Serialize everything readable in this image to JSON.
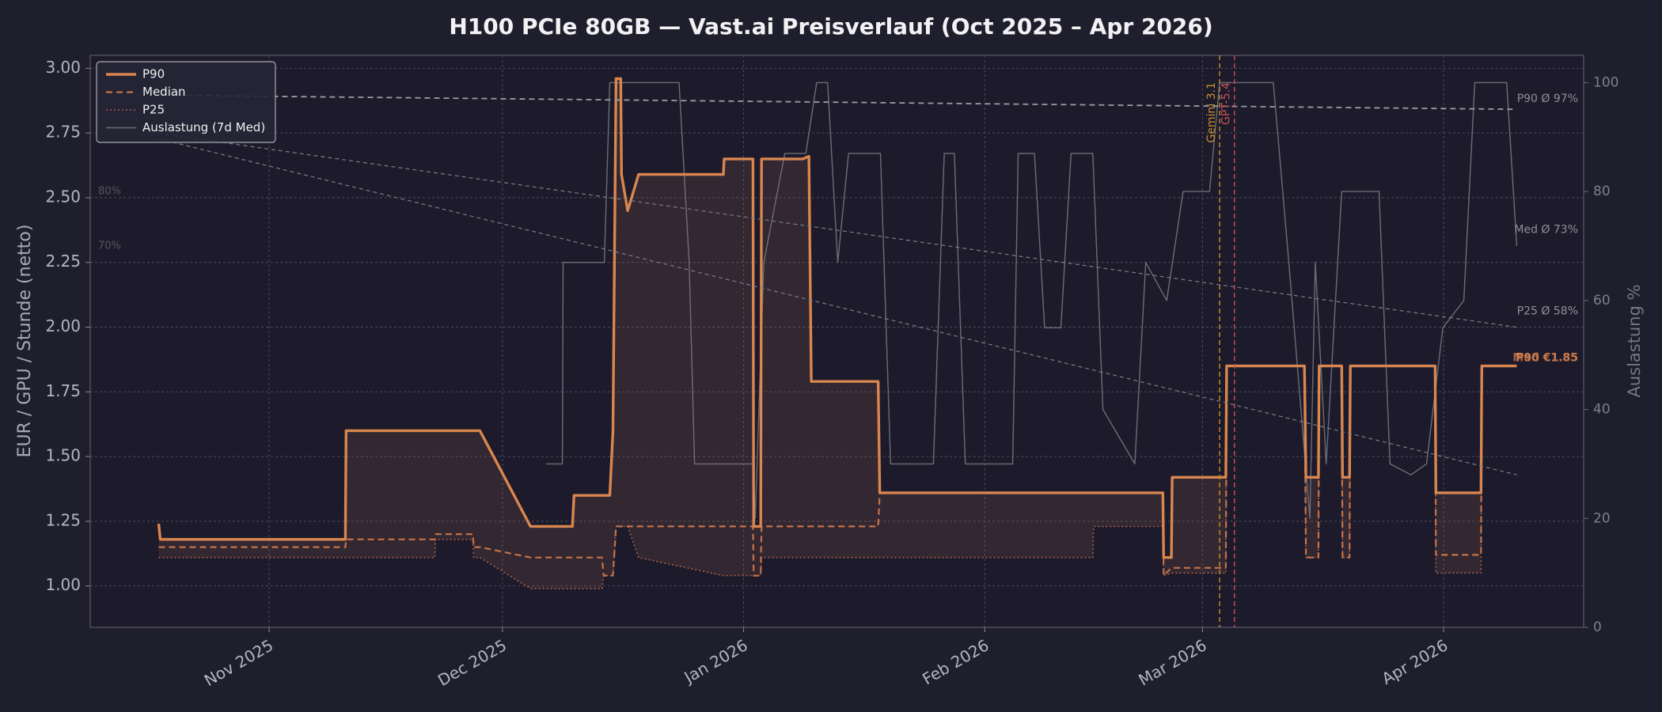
{
  "chart_data": {
    "type": "line",
    "title": "H100 PCIe 80GB — Vast.ai Preisverlauf (Oct 2025 – Apr 2026)",
    "ylabel": "EUR / GPU / Stunde (netto)",
    "y2label": "Auslastung %",
    "xlim": [
      8,
      200
    ],
    "xticks": [
      {
        "value": 31,
        "label": "Nov 2025"
      },
      {
        "value": 61,
        "label": "Dec 2025"
      },
      {
        "value": 92,
        "label": "Jan 2026"
      },
      {
        "value": 123,
        "label": "Feb 2026"
      },
      {
        "value": 151,
        "label": "Mar 2026"
      },
      {
        "value": 182,
        "label": "Apr 2026"
      }
    ],
    "ylim": [
      0.84,
      3.05
    ],
    "yticks": [
      {
        "value": 1.0,
        "label": "1.00"
      },
      {
        "value": 1.25,
        "label": "1.25"
      },
      {
        "value": 1.5,
        "label": "1.50"
      },
      {
        "value": 1.75,
        "label": "1.75"
      },
      {
        "value": 2.0,
        "label": "2.00"
      },
      {
        "value": 2.25,
        "label": "2.25"
      },
      {
        "value": 2.5,
        "label": "2.50"
      },
      {
        "value": 2.75,
        "label": "2.75"
      },
      {
        "value": 3.0,
        "label": "3.00"
      }
    ],
    "y2lim": [
      0,
      105
    ],
    "y2ticks": [
      0,
      20,
      40,
      60,
      80,
      100
    ],
    "grid": true,
    "legend": "upper left",
    "x": [
      16.8,
      17.0,
      40.8,
      40.9,
      52.3,
      52.4,
      57.2,
      57.3,
      58.1,
      64.6,
      70.0,
      70.2,
      73.8,
      74.0,
      74.8,
      75.2,
      75.6,
      76.2,
      76.3,
      77.1,
      78.5,
      89.4,
      89.5,
      93.2,
      93.3,
      94.2,
      94.3,
      99.6,
      100.4,
      100.7,
      109.3,
      109.5,
      136.9,
      137.0,
      145.9,
      146.0,
      147.0,
      147.1,
      154.0,
      154.1,
      164.1,
      164.3,
      165.9,
      166.0,
      168.9,
      169.0,
      169.9,
      170.0,
      180.9,
      181.0,
      186.8,
      186.9,
      191.4
    ],
    "series": [
      {
        "name": "P90",
        "color": "#d9864f",
        "style": "solid",
        "values": [
          1.24,
          1.18,
          1.18,
          1.6,
          1.6,
          1.6,
          1.6,
          1.6,
          1.6,
          1.23,
          1.23,
          1.35,
          1.35,
          1.35,
          1.35,
          1.6,
          2.96,
          2.96,
          2.59,
          2.45,
          2.59,
          2.59,
          2.65,
          2.65,
          1.23,
          1.23,
          2.65,
          2.65,
          2.66,
          1.79,
          1.79,
          1.36,
          1.36,
          1.36,
          1.36,
          1.11,
          1.11,
          1.42,
          1.42,
          1.85,
          1.85,
          1.42,
          1.42,
          1.85,
          1.85,
          1.42,
          1.42,
          1.85,
          1.85,
          1.36,
          1.36,
          1.85,
          1.85
        ]
      },
      {
        "name": "Median",
        "color": "#c4734a",
        "style": "dashed",
        "values": [
          1.15,
          1.15,
          1.15,
          1.18,
          1.18,
          1.2,
          1.2,
          1.15,
          1.15,
          1.11,
          1.11,
          1.11,
          1.11,
          1.04,
          1.04,
          1.04,
          1.23,
          1.23,
          1.23,
          1.23,
          1.23,
          1.23,
          1.23,
          1.23,
          1.04,
          1.04,
          1.23,
          1.23,
          1.23,
          1.23,
          1.23,
          1.36,
          1.36,
          1.36,
          1.36,
          1.04,
          1.07,
          1.07,
          1.07,
          1.85,
          1.85,
          1.11,
          1.11,
          1.85,
          1.85,
          1.11,
          1.11,
          1.85,
          1.85,
          1.12,
          1.12,
          1.85,
          1.85
        ]
      },
      {
        "name": "P25",
        "color": "#a8604a",
        "style": "dotted",
        "values": [
          1.11,
          1.11,
          1.11,
          1.11,
          1.11,
          1.18,
          1.18,
          1.11,
          1.11,
          0.99,
          0.99,
          0.99,
          0.99,
          1.04,
          1.04,
          1.04,
          1.23,
          1.23,
          1.23,
          1.23,
          1.11,
          1.04,
          1.04,
          1.04,
          1.04,
          1.04,
          1.11,
          1.11,
          1.11,
          1.11,
          1.11,
          1.11,
          1.11,
          1.23,
          1.23,
          1.04,
          1.05,
          1.05,
          1.05,
          1.85,
          1.85,
          1.11,
          1.11,
          1.85,
          1.85,
          1.11,
          1.11,
          1.85,
          1.85,
          1.05,
          1.05,
          1.85,
          1.85
        ]
      },
      {
        "name": "Auslastung (7d Med)",
        "color": "#7a7a84",
        "style": "thin",
        "axis": "y2",
        "x": [
          66.6,
          68.7,
          68.8,
          74.1,
          74.8,
          83.7,
          85.0,
          85.7,
          93.2,
          93.5,
          94.6,
          97.3,
          100.0,
          101.4,
          102.8,
          104.1,
          105.5,
          109.6,
          110.9,
          116.4,
          117.8,
          119.1,
          120.5,
          126.6,
          127.3,
          129.4,
          130.7,
          132.8,
          134.1,
          136.9,
          138.2,
          142.3,
          143.7,
          146.4,
          148.5,
          151.9,
          153.2,
          160.1,
          162.1,
          164.8,
          165.5,
          166.9,
          168.9,
          173.7,
          175.1,
          177.8,
          179.8,
          181.9,
          184.6,
          186.0,
          190.1,
          191.4
        ],
        "values": [
          30,
          30,
          67,
          67,
          100,
          100,
          67,
          30,
          30,
          20,
          67,
          87,
          87,
          100,
          100,
          67,
          87,
          87,
          30,
          30,
          87,
          87,
          30,
          30,
          87,
          87,
          55,
          55,
          87,
          87,
          40,
          30,
          67,
          60,
          80,
          80,
          100,
          100,
          67,
          20,
          67,
          30,
          80,
          80,
          30,
          28,
          30,
          55,
          60,
          100,
          100,
          70
        ]
      }
    ],
    "trend_lines": [
      {
        "x": [
          16.8,
          191.4
        ],
        "values": [
          97.7,
          95.1
        ]
      },
      {
        "x": [
          16.8,
          191.4
        ],
        "values": [
          90.7,
          55.1
        ]
      },
      {
        "x": [
          16.8,
          191.4
        ],
        "values": [
          89.7,
          28.0
        ]
      }
    ],
    "trend_labels": [
      {
        "text": "P90 Ø 97%",
        "value": 97
      },
      {
        "text": "Med Ø 73%",
        "value": 73
      },
      {
        "text": "P25 Ø 58%",
        "value": 58
      }
    ],
    "ref_labels": [
      {
        "text": "80%",
        "value": 80
      },
      {
        "text": "70%",
        "value": 70
      }
    ],
    "events": [
      {
        "label": "Gemini 3.1",
        "x": 153.2,
        "color": "#c8902a"
      },
      {
        "label": "GPT-5.4",
        "x": 155.1,
        "color": "#c8505a"
      }
    ],
    "end_labels": [
      {
        "text": "P90 €1.85",
        "value": 1.85
      },
      {
        "text": "Med €1.85",
        "value": 1.85
      }
    ]
  }
}
